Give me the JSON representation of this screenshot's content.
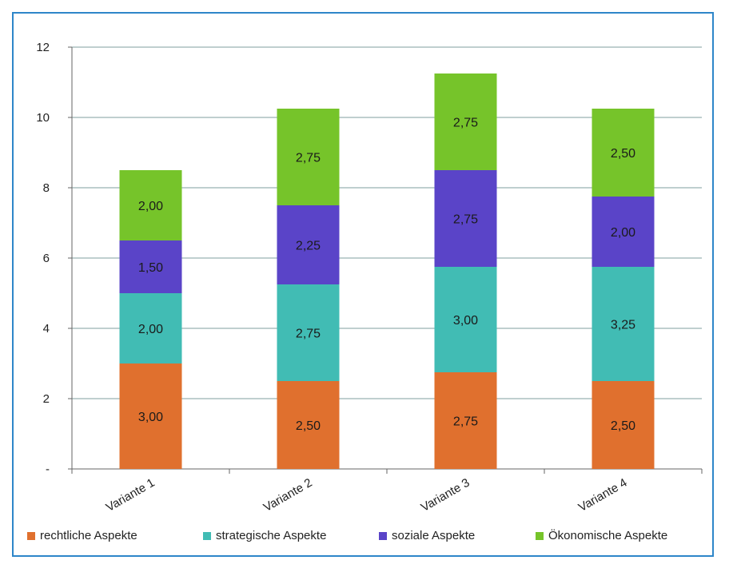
{
  "chart_data": {
    "type": "bar",
    "stacked": true,
    "categories": [
      "Variante 1",
      "Variante 2",
      "Variante 3",
      "Variante 4"
    ],
    "series": [
      {
        "name": "rechtliche Aspekte",
        "color": "#e0702e",
        "values": [
          3.0,
          2.5,
          2.75,
          2.5
        ],
        "labels": [
          "3,00",
          "2,50",
          "2,75",
          "2,50"
        ]
      },
      {
        "name": "strategische Aspekte",
        "color": "#41bcb4",
        "values": [
          2.0,
          2.75,
          3.0,
          3.25
        ],
        "labels": [
          "2,00",
          "2,75",
          "3,00",
          "3,25"
        ]
      },
      {
        "name": "soziale Aspekte",
        "color": "#5a44c8",
        "values": [
          1.5,
          2.25,
          2.75,
          2.0
        ],
        "labels": [
          "1,50",
          "2,25",
          "2,75",
          "2,00"
        ]
      },
      {
        "name": "Ökonomische Aspekte",
        "color": "#76c42a",
        "values": [
          2.0,
          2.75,
          2.75,
          2.5
        ],
        "labels": [
          "2,00",
          "2,75",
          "2,75",
          "2,50"
        ]
      }
    ],
    "ylim": [
      0,
      12
    ],
    "yticks": [
      0,
      2,
      4,
      6,
      8,
      10,
      12
    ],
    "ytick_labels": [
      "-",
      "2",
      "4",
      "6",
      "8",
      "10",
      "12"
    ],
    "grid": true,
    "legend_position": "bottom",
    "frame_color": "#2e86c9"
  }
}
